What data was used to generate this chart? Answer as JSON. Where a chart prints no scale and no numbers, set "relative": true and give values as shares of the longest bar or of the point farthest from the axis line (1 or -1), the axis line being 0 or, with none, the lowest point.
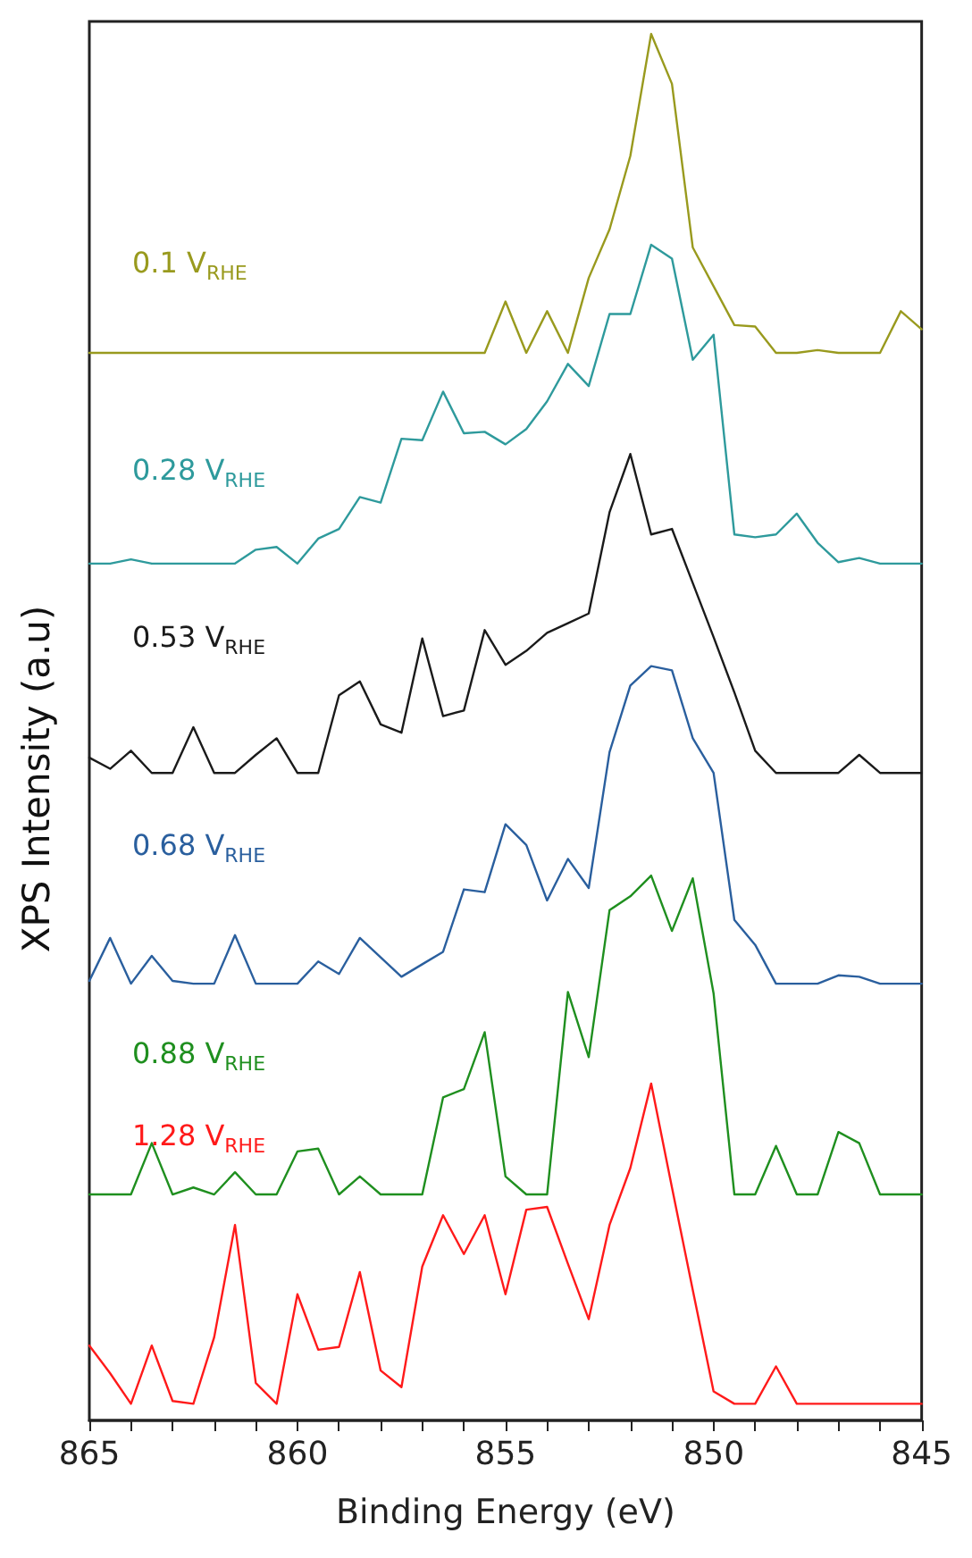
{
  "chart_data": {
    "type": "line",
    "relative": true,
    "xlabel": "Binding Energy (eV)",
    "ylabel": "XPS Intensity (a.u)",
    "xlim": [
      865,
      845
    ],
    "xticks": [
      865,
      {
        "value": 864,
        "label": null
      },
      {
        "value": 863,
        "label": null
      },
      {
        "value": 862,
        "label": null
      },
      {
        "value": 861,
        "label": null
      },
      860,
      {
        "value": 859,
        "label": null
      },
      {
        "value": 858,
        "label": null
      },
      {
        "value": 857,
        "label": null
      },
      {
        "value": 856,
        "label": null
      },
      855,
      {
        "value": 854,
        "label": null
      },
      {
        "value": 853,
        "label": null
      },
      {
        "value": 852,
        "label": null
      },
      {
        "value": 851,
        "label": null
      },
      850,
      {
        "value": 849,
        "label": null
      },
      {
        "value": 848,
        "label": null
      },
      {
        "value": 847,
        "label": null
      },
      {
        "value": 846,
        "label": null
      },
      845
    ],
    "x": [
      865,
      864.5,
      864,
      863.5,
      863,
      862.5,
      862,
      861.5,
      861,
      860.5,
      860,
      859.5,
      859,
      858.5,
      858,
      857.5,
      857,
      856.5,
      856,
      855.5,
      855,
      854.5,
      854,
      853.5,
      853,
      852.5,
      852,
      851.5,
      851,
      850.5,
      850,
      849.5,
      849,
      848.5,
      848,
      847.5,
      847,
      846.5,
      846,
      845.5,
      845
    ],
    "legend": false,
    "grid": false,
    "marker": "none",
    "line_style": "solid",
    "series": [
      {
        "name": "0.1 V$_{RHE}$",
        "color": "#999a1e",
        "values": [
          0.77,
          0.77,
          0.77,
          0.77,
          0.77,
          0.77,
          0.77,
          0.77,
          0.77,
          0.77,
          0.77,
          0.77,
          0.77,
          0.77,
          0.77,
          0.77,
          0.77,
          0.77,
          0.77,
          0.77,
          0.807,
          0.77,
          0.8,
          0.77,
          0.824,
          0.859,
          0.912,
          1,
          0.964,
          0.846,
          0.818,
          0.79,
          0.789,
          0.77,
          0.77,
          0.772,
          0.77,
          0.77,
          0.77,
          0.8,
          0.787
        ]
      },
      {
        "name": "0.28 V$_{RHE}$",
        "color": "#2e9a9c",
        "values": [
          0.618,
          0.618,
          0.621,
          0.618,
          0.618,
          0.618,
          0.618,
          0.618,
          0.628,
          0.63,
          0.618,
          0.636,
          0.643,
          0.666,
          0.662,
          0.708,
          0.707,
          0.742,
          0.712,
          0.713,
          0.704,
          0.715,
          0.735,
          0.762,
          0.746,
          0.798,
          0.798,
          0.848,
          0.838,
          0.765,
          0.783,
          0.639,
          0.637,
          0.639,
          0.654,
          0.633,
          0.619,
          0.622,
          0.618,
          0.618,
          0.618
        ]
      },
      {
        "name": "0.53 V$_{RHE}$",
        "color": "#1a1a1a",
        "values": [
          0.478,
          0.47,
          0.483,
          0.467,
          0.467,
          0.5,
          0.467,
          0.467,
          0.48,
          0.492,
          0.467,
          0.467,
          0.523,
          0.533,
          0.502,
          0.496,
          0.564,
          0.508,
          0.512,
          0.57,
          0.545,
          0.555,
          0.568,
          0.575,
          0.582,
          0.655,
          0.697,
          0.639,
          0.643,
          0.604,
          0.565,
          0.525,
          0.483,
          0.467,
          0.467,
          0.467,
          0.467,
          0.48,
          0.467,
          0.467,
          0.467
        ]
      },
      {
        "name": "0.68 V$_{RHE}$",
        "color": "#2a5f9e",
        "values": [
          0.317,
          0.348,
          0.315,
          0.335,
          0.317,
          0.315,
          0.315,
          0.35,
          0.315,
          0.315,
          0.315,
          0.331,
          0.322,
          0.348,
          0.334,
          0.32,
          0.329,
          0.338,
          0.383,
          0.381,
          0.43,
          0.415,
          0.375,
          0.405,
          0.384,
          0.482,
          0.53,
          0.544,
          0.541,
          0.492,
          0.467,
          0.361,
          0.343,
          0.315,
          0.315,
          0.315,
          0.321,
          0.32,
          0.315,
          0.315,
          0.315
        ]
      },
      {
        "name": "0.88 V$_{RHE}$",
        "color": "#1f8f1f",
        "values": [
          0.163,
          0.163,
          0.163,
          0.2,
          0.163,
          0.168,
          0.163,
          0.179,
          0.163,
          0.163,
          0.194,
          0.196,
          0.163,
          0.176,
          0.163,
          0.163,
          0.163,
          0.233,
          0.239,
          0.28,
          0.176,
          0.163,
          0.163,
          0.309,
          0.262,
          0.368,
          0.378,
          0.393,
          0.353,
          0.391,
          0.308,
          0.163,
          0.163,
          0.198,
          0.163,
          0.163,
          0.208,
          0.2,
          0.163,
          0.163,
          0.163
        ]
      },
      {
        "name": "1.28 V$_{RHE}$",
        "color": "#ff1a1a",
        "values": [
          0.054,
          0.034,
          0.012,
          0.054,
          0.014,
          0.012,
          0.06,
          0.141,
          0.027,
          0.012,
          0.091,
          0.051,
          0.053,
          0.107,
          0.036,
          0.024,
          0.111,
          0.148,
          0.12,
          0.148,
          0.091,
          0.152,
          0.154,
          0.113,
          0.073,
          0.141,
          0.182,
          0.243,
          0.168,
          0.094,
          0.021,
          0.012,
          0.012,
          0.039,
          0.012,
          0.012,
          0.012,
          0.012,
          0.012,
          0.012,
          0.012
        ]
      }
    ]
  }
}
